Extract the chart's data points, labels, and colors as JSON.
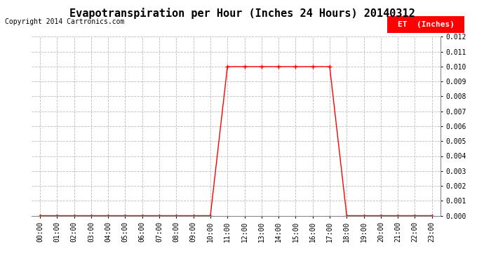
{
  "title": "Evapotranspiration per Hour (Inches 24 Hours) 20140312",
  "copyright": "Copyright 2014 Cartronics.com",
  "legend_label": "ET  (Inches)",
  "legend_bg": "#ff0000",
  "legend_text_color": "#ffffff",
  "line_color": "#ff0000",
  "marker": "+",
  "marker_color": "#ff0000",
  "hours": [
    "00:00",
    "01:00",
    "02:00",
    "03:00",
    "04:00",
    "05:00",
    "06:00",
    "07:00",
    "08:00",
    "09:00",
    "10:00",
    "11:00",
    "12:00",
    "13:00",
    "14:00",
    "15:00",
    "16:00",
    "17:00",
    "18:00",
    "19:00",
    "20:00",
    "21:00",
    "22:00",
    "23:00"
  ],
  "values": [
    0.0,
    0.0,
    0.0,
    0.0,
    0.0,
    0.0,
    0.0,
    0.0,
    0.0,
    0.0,
    0.0,
    0.01,
    0.01,
    0.01,
    0.01,
    0.01,
    0.01,
    0.01,
    0.0,
    0.0,
    0.0,
    0.0,
    0.0,
    0.0
  ],
  "ylim": [
    0.0,
    0.012
  ],
  "yticks": [
    0.0,
    0.001,
    0.002,
    0.003,
    0.004,
    0.005,
    0.006,
    0.007,
    0.008,
    0.009,
    0.01,
    0.011,
    0.012
  ],
  "bg_color": "#ffffff",
  "grid_color": "#bbbbbb",
  "title_fontsize": 11,
  "copyright_fontsize": 7,
  "tick_fontsize": 7,
  "legend_fontsize": 8,
  "axis_bg": "#ffffff"
}
